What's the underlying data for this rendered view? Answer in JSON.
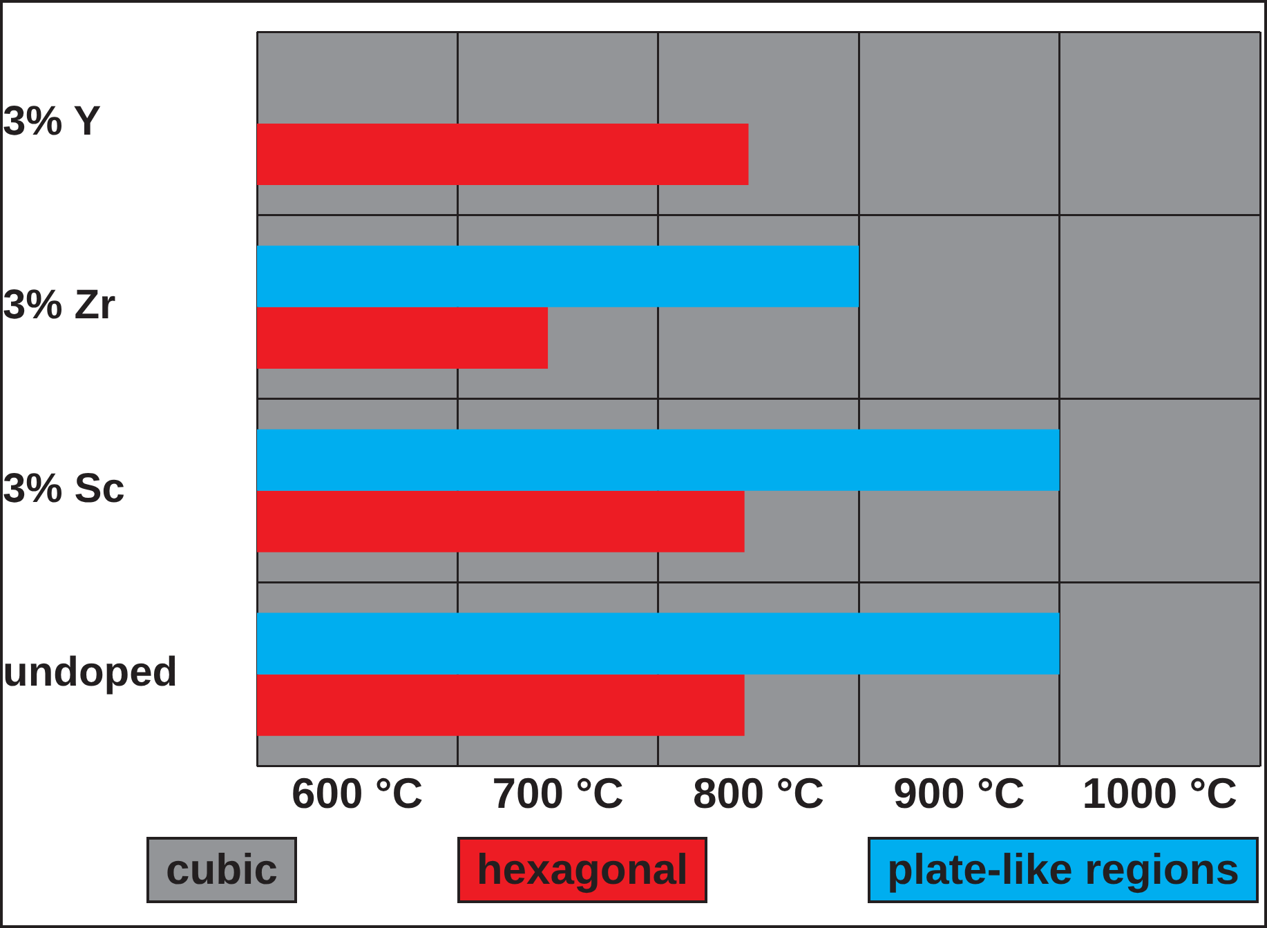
{
  "chart_data": {
    "type": "bar",
    "orientation": "horizontal",
    "categories": [
      "3% Y",
      "3% Zr",
      "3% Sc",
      "undoped"
    ],
    "series": [
      {
        "name": "plate-like regions",
        "color": "#00aeef",
        "values": [
          null,
          300,
          400,
          400
        ],
        "base": [
          null,
          550,
          550,
          550
        ]
      },
      {
        "name": "hexagonal",
        "color": "#ed1c24",
        "values": [
          245,
          145,
          243,
          243
        ],
        "base": [
          550,
          550,
          550,
          550
        ]
      }
    ],
    "bands": [
      {
        "axis": "x",
        "from": 550,
        "to": 1050,
        "label": "cubic",
        "color": "#939598"
      }
    ],
    "xlim": [
      550,
      1050
    ],
    "xticks": [
      {
        "value": 550,
        "label": null
      },
      {
        "value": 600,
        "label": "600 °C"
      },
      {
        "value": 650,
        "label": null
      },
      {
        "value": 700,
        "label": "700 °C"
      },
      {
        "value": 750,
        "label": null
      },
      {
        "value": 800,
        "label": "800 °C"
      },
      {
        "value": 850,
        "label": null
      },
      {
        "value": 900,
        "label": "900 °C"
      },
      {
        "value": 950,
        "label": null
      },
      {
        "value": 1000,
        "label": "1000 °C"
      },
      {
        "value": 1050,
        "label": null
      }
    ],
    "grid": true,
    "legend": "bottom"
  }
}
